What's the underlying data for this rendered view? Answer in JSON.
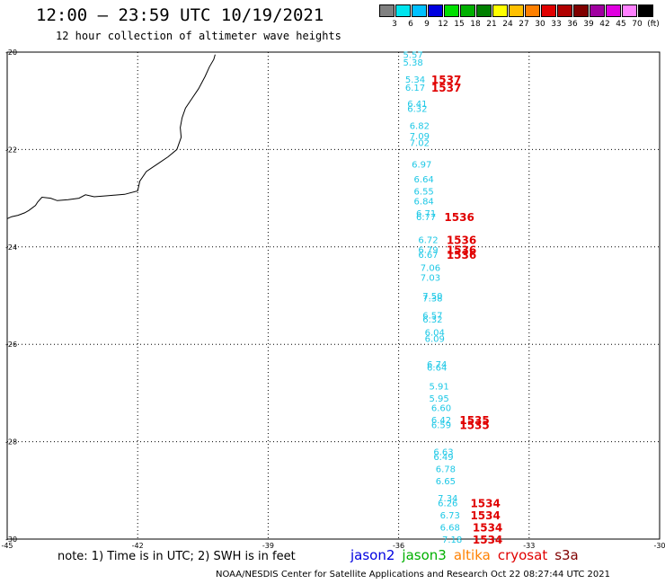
{
  "header": {
    "title": "12:00 — 23:59 UTC 10/19/2021",
    "subtitle": "12 hour collection of altimeter wave heights"
  },
  "scale": {
    "labels": [
      "3",
      "6",
      "9",
      "12",
      "15",
      "18",
      "21",
      "24",
      "27",
      "30",
      "33",
      "36",
      "39",
      "42",
      "45",
      "70",
      "(ft)"
    ],
    "colors": [
      "#808080",
      "#00e5ee",
      "#00c0ff",
      "#0000e0",
      "#00e000",
      "#00b000",
      "#008000",
      "#ffff00",
      "#ffc000",
      "#ff8000",
      "#e00000",
      "#b00000",
      "#800000",
      "#a000a0",
      "#e000e0",
      "#ff80ff",
      "#000000"
    ]
  },
  "axes": {
    "lon_ticks": [
      "-45",
      "-42",
      "-39",
      "-36",
      "-33",
      "-30"
    ],
    "lat_ticks": [
      "-20",
      "-22",
      "-24",
      "-26",
      "-28",
      "-30"
    ],
    "lon_range": [
      -45,
      -30
    ],
    "lat_range": [
      -30,
      -20
    ]
  },
  "wave_heights": [
    {
      "lat": -20.05,
      "lon": -35.9,
      "value": "5.57"
    },
    {
      "lat": -20.2,
      "lon": -35.9,
      "value": "5.38"
    },
    {
      "lat": -20.55,
      "lon": -35.85,
      "value": "5.34"
    },
    {
      "lat": -20.72,
      "lon": -35.85,
      "value": "6.17"
    },
    {
      "lat": -21.05,
      "lon": -35.8,
      "value": "6.41"
    },
    {
      "lat": -21.15,
      "lon": -35.8,
      "value": "6.32"
    },
    {
      "lat": -21.5,
      "lon": -35.75,
      "value": "6.82"
    },
    {
      "lat": -21.72,
      "lon": -35.75,
      "value": "7.09"
    },
    {
      "lat": -21.85,
      "lon": -35.75,
      "value": "7.02"
    },
    {
      "lat": -22.3,
      "lon": -35.7,
      "value": "6.97"
    },
    {
      "lat": -22.6,
      "lon": -35.65,
      "value": "6.64"
    },
    {
      "lat": -22.85,
      "lon": -35.65,
      "value": "6.55"
    },
    {
      "lat": -23.05,
      "lon": -35.65,
      "value": "6.84"
    },
    {
      "lat": -23.3,
      "lon": -35.6,
      "value": "6.71"
    },
    {
      "lat": -23.38,
      "lon": -35.6,
      "value": "6.77"
    },
    {
      "lat": -23.85,
      "lon": -35.55,
      "value": "6.72"
    },
    {
      "lat": -24.05,
      "lon": -35.55,
      "value": "6.79"
    },
    {
      "lat": -24.15,
      "lon": -35.55,
      "value": "6.67"
    },
    {
      "lat": -24.42,
      "lon": -35.5,
      "value": "7.06"
    },
    {
      "lat": -24.62,
      "lon": -35.5,
      "value": "7.03"
    },
    {
      "lat": -25.0,
      "lon": -35.45,
      "value": "7.50"
    },
    {
      "lat": -25.05,
      "lon": -35.45,
      "value": "7.38"
    },
    {
      "lat": -25.4,
      "lon": -35.45,
      "value": "6.57"
    },
    {
      "lat": -25.48,
      "lon": -35.45,
      "value": "6.32"
    },
    {
      "lat": -25.75,
      "lon": -35.4,
      "value": "6.04"
    },
    {
      "lat": -25.88,
      "lon": -35.4,
      "value": "6.09"
    },
    {
      "lat": -26.4,
      "lon": -35.35,
      "value": "6.74"
    },
    {
      "lat": -26.47,
      "lon": -35.35,
      "value": "6.64"
    },
    {
      "lat": -26.85,
      "lon": -35.3,
      "value": "5.91"
    },
    {
      "lat": -27.1,
      "lon": -35.3,
      "value": "5.95"
    },
    {
      "lat": -27.3,
      "lon": -35.25,
      "value": "6.60"
    },
    {
      "lat": -27.55,
      "lon": -35.25,
      "value": "6.42"
    },
    {
      "lat": -27.65,
      "lon": -35.25,
      "value": "6.59"
    },
    {
      "lat": -28.2,
      "lon": -35.2,
      "value": "6.63"
    },
    {
      "lat": -28.3,
      "lon": -35.2,
      "value": "6.49"
    },
    {
      "lat": -28.55,
      "lon": -35.15,
      "value": "6.78"
    },
    {
      "lat": -28.8,
      "lon": -35.15,
      "value": "6.65"
    },
    {
      "lat": -29.15,
      "lon": -35.1,
      "value": "7.34"
    },
    {
      "lat": -29.25,
      "lon": -35.1,
      "value": "6.26"
    },
    {
      "lat": -29.5,
      "lon": -35.05,
      "value": "6.73"
    },
    {
      "lat": -29.75,
      "lon": -35.05,
      "value": "6.68"
    },
    {
      "lat": -30.0,
      "lon": -35.0,
      "value": "7.18"
    }
  ],
  "cycle_labels": [
    {
      "lat": -20.55,
      "lon": -35.25,
      "value": "1537"
    },
    {
      "lat": -20.72,
      "lon": -35.25,
      "value": "1537"
    },
    {
      "lat": -23.38,
      "lon": -34.95,
      "value": "1536"
    },
    {
      "lat": -23.85,
      "lon": -34.9,
      "value": "1536"
    },
    {
      "lat": -24.05,
      "lon": -34.9,
      "value": "1536"
    },
    {
      "lat": -24.15,
      "lon": -34.9,
      "value": "1536"
    },
    {
      "lat": -27.55,
      "lon": -34.6,
      "value": "1535"
    },
    {
      "lat": -27.65,
      "lon": -34.6,
      "value": "1535"
    },
    {
      "lat": -29.25,
      "lon": -34.35,
      "value": "1534"
    },
    {
      "lat": -29.5,
      "lon": -34.35,
      "value": "1534"
    },
    {
      "lat": -29.75,
      "lon": -34.3,
      "value": "1534"
    },
    {
      "lat": -30.0,
      "lon": -34.3,
      "value": "1534"
    }
  ],
  "coastline": [
    [
      -40.22,
      -20.05
    ],
    [
      -40.25,
      -20.15
    ],
    [
      -40.35,
      -20.3
    ],
    [
      -40.45,
      -20.5
    ],
    [
      -40.6,
      -20.75
    ],
    [
      -40.75,
      -20.95
    ],
    [
      -40.9,
      -21.15
    ],
    [
      -40.98,
      -21.35
    ],
    [
      -41.02,
      -21.55
    ],
    [
      -41.0,
      -21.75
    ],
    [
      -41.1,
      -22.0
    ],
    [
      -41.3,
      -22.15
    ],
    [
      -41.55,
      -22.3
    ],
    [
      -41.8,
      -22.45
    ],
    [
      -41.95,
      -22.65
    ],
    [
      -42.0,
      -22.85
    ],
    [
      -42.3,
      -22.92
    ],
    [
      -42.7,
      -22.95
    ],
    [
      -43.0,
      -22.97
    ],
    [
      -43.2,
      -22.93
    ],
    [
      -43.35,
      -23.0
    ],
    [
      -43.6,
      -23.03
    ],
    [
      -43.85,
      -23.05
    ],
    [
      -44.0,
      -23.0
    ],
    [
      -44.2,
      -22.98
    ],
    [
      -44.3,
      -23.08
    ],
    [
      -44.35,
      -23.15
    ],
    [
      -44.5,
      -23.25
    ],
    [
      -44.6,
      -23.3
    ],
    [
      -44.75,
      -23.35
    ],
    [
      -44.9,
      -23.38
    ],
    [
      -45.0,
      -23.42
    ]
  ],
  "footer": {
    "note": "note: 1) Time is in UTC; 2) SWH is in feet",
    "legend": [
      {
        "label": "jason2",
        "color": "#0000e0"
      },
      {
        "label": "jason3",
        "color": "#00b000"
      },
      {
        "label": "altika",
        "color": "#ff8000"
      },
      {
        "label": "cryosat",
        "color": "#e00000"
      },
      {
        "label": "s3a",
        "color": "#800000"
      }
    ],
    "credit": "NOAA/NESDIS Center for Satellite Applications and Research    Oct 22 08:27:44 UTC 2021"
  }
}
